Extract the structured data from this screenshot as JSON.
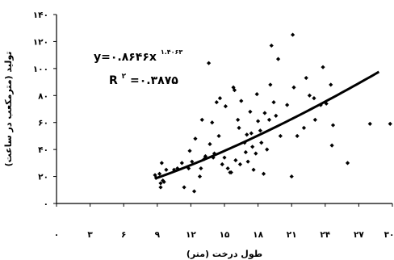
{
  "chart_data": {
    "type": "scatter",
    "xlabel": "طول درخت (متر)",
    "ylabel": "تولید (مترمکعب در ساعت)",
    "xlim": [
      0,
      30
    ],
    "ylim": [
      0,
      140
    ],
    "x_ticks": [
      0,
      3,
      6,
      9,
      12,
      15,
      18,
      21,
      24,
      27,
      30
    ],
    "x_tick_labels": [
      "۰",
      "۳",
      "۶",
      "۹",
      "۱۲",
      "۱۵",
      "۱۸",
      "۲۱",
      "۲۴",
      "۲۷",
      "۳۰"
    ],
    "y_ticks": [
      0,
      20,
      40,
      60,
      80,
      100,
      120,
      140
    ],
    "y_tick_labels": [
      "۰",
      "۲۰",
      "۴۰",
      "۶۰",
      "۸۰",
      "۱۰۰",
      "۱۲۰",
      "۱۴۰"
    ],
    "grid": false,
    "legend": "none",
    "equation_label": "y=۰.۸۶۴۶x",
    "equation_exponent": "۱.۴۰۶۳",
    "r2_label": "R",
    "r2_sup": "۲",
    "r2_value": "=۰.۳۸۷۵",
    "trendline": {
      "type": "power",
      "coefficient": 0.8646,
      "exponent": 1.4063,
      "x_range": [
        8.8,
        28.8
      ]
    },
    "series": [
      {
        "points": [
          [
            8.8,
            21
          ],
          [
            8.9,
            19
          ],
          [
            9.2,
            22
          ],
          [
            9.3,
            12
          ],
          [
            9.3,
            15
          ],
          [
            9.4,
            30
          ],
          [
            9.5,
            17
          ],
          [
            9.6,
            16
          ],
          [
            9.8,
            25
          ],
          [
            10.5,
            25
          ],
          [
            10.8,
            26
          ],
          [
            11.2,
            30
          ],
          [
            11.4,
            12
          ],
          [
            11.8,
            26
          ],
          [
            11.9,
            39
          ],
          [
            12.1,
            31
          ],
          [
            12.3,
            9
          ],
          [
            12.4,
            48
          ],
          [
            12.8,
            20
          ],
          [
            12.9,
            26
          ],
          [
            13.0,
            62
          ],
          [
            13.2,
            33
          ],
          [
            13.3,
            35
          ],
          [
            13.6,
            104
          ],
          [
            13.7,
            44
          ],
          [
            13.9,
            60
          ],
          [
            14.0,
            34
          ],
          [
            14.1,
            37
          ],
          [
            14.3,
            75
          ],
          [
            14.5,
            50
          ],
          [
            14.6,
            78
          ],
          [
            14.8,
            29
          ],
          [
            15.0,
            34
          ],
          [
            15.1,
            72
          ],
          [
            15.3,
            26
          ],
          [
            15.5,
            23
          ],
          [
            15.6,
            23
          ],
          [
            15.8,
            86
          ],
          [
            15.9,
            84
          ],
          [
            16.0,
            32
          ],
          [
            16.2,
            62
          ],
          [
            16.3,
            56
          ],
          [
            16.4,
            29
          ],
          [
            16.5,
            76
          ],
          [
            16.8,
            45
          ],
          [
            16.9,
            38
          ],
          [
            17.0,
            51
          ],
          [
            17.1,
            31
          ],
          [
            17.3,
            68
          ],
          [
            17.4,
            52
          ],
          [
            17.5,
            42
          ],
          [
            17.6,
            25
          ],
          [
            17.8,
            37
          ],
          [
            17.9,
            81
          ],
          [
            18.0,
            61
          ],
          [
            18.2,
            54
          ],
          [
            18.3,
            45
          ],
          [
            18.5,
            22
          ],
          [
            18.6,
            67
          ],
          [
            18.8,
            40
          ],
          [
            19.0,
            62
          ],
          [
            19.1,
            88
          ],
          [
            19.2,
            117
          ],
          [
            19.4,
            75
          ],
          [
            19.6,
            65
          ],
          [
            19.8,
            107
          ],
          [
            20.0,
            50
          ],
          [
            20.6,
            73
          ],
          [
            21.0,
            20
          ],
          [
            21.1,
            125
          ],
          [
            21.2,
            86
          ],
          [
            21.5,
            50
          ],
          [
            22.1,
            56
          ],
          [
            22.3,
            93
          ],
          [
            22.6,
            80
          ],
          [
            23.0,
            78
          ],
          [
            23.1,
            62
          ],
          [
            23.6,
            73
          ],
          [
            23.8,
            101
          ],
          [
            24.1,
            74
          ],
          [
            24.5,
            88
          ],
          [
            24.6,
            43
          ],
          [
            24.7,
            58
          ],
          [
            26.0,
            30
          ],
          [
            28.0,
            59
          ],
          [
            29.8,
            59
          ]
        ]
      }
    ]
  }
}
